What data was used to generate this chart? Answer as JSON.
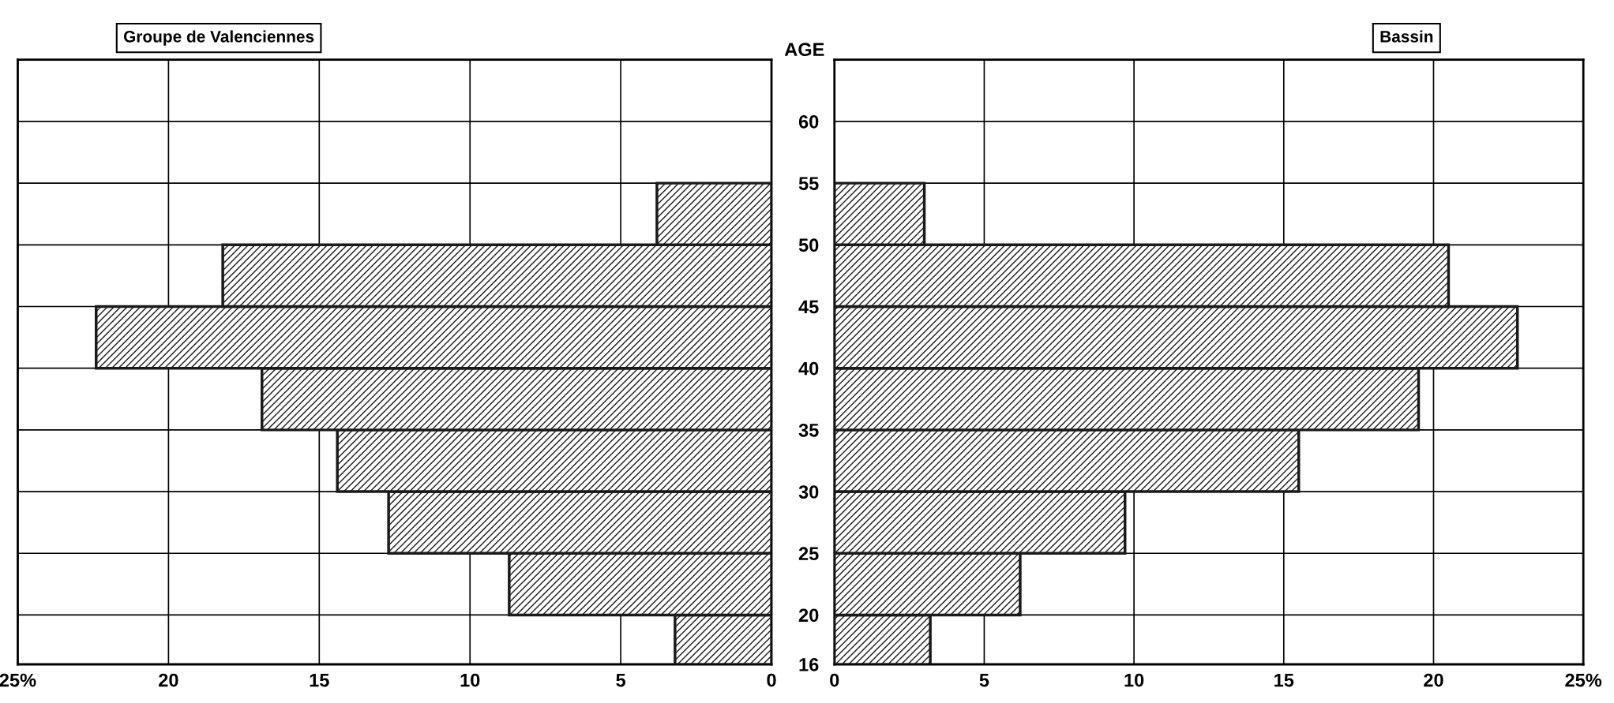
{
  "chart_data": [
    {
      "type": "histogram",
      "orientation": "horizontal",
      "title": "Groupe de Valenciennes",
      "bins": [
        16,
        20,
        25,
        30,
        35,
        40,
        45,
        50,
        55
      ],
      "values": [
        3.2,
        8.7,
        12.7,
        14.4,
        16.9,
        22.4,
        18.2,
        3.8
      ],
      "color": "#1a1a1a",
      "xlim": [
        25,
        0
      ],
      "xticks": [
        {
          "value": 25,
          "label": "25%"
        },
        20,
        15,
        10,
        5,
        0
      ],
      "ylim": [
        16,
        65
      ],
      "yticks": [
        16,
        20,
        25,
        30,
        35,
        40,
        45,
        50,
        55,
        60
      ],
      "tick_labels": "x",
      "grid": true
    },
    {
      "type": "histogram",
      "orientation": "horizontal",
      "title": "Bassin",
      "ylabel": "AGE",
      "bins": [
        16,
        20,
        25,
        30,
        35,
        40,
        45,
        50,
        55
      ],
      "values": [
        3.2,
        6.2,
        9.7,
        15.5,
        19.5,
        22.8,
        20.5,
        3.0
      ],
      "color": "#1a1a1a",
      "xlim": [
        0,
        25
      ],
      "xticks": [
        0,
        5,
        10,
        15,
        20,
        {
          "value": 25,
          "label": "25%"
        }
      ],
      "ylim": [
        16,
        65
      ],
      "yticks": [
        16,
        20,
        25,
        30,
        35,
        40,
        45,
        50,
        55,
        60
      ],
      "grid": true
    }
  ]
}
